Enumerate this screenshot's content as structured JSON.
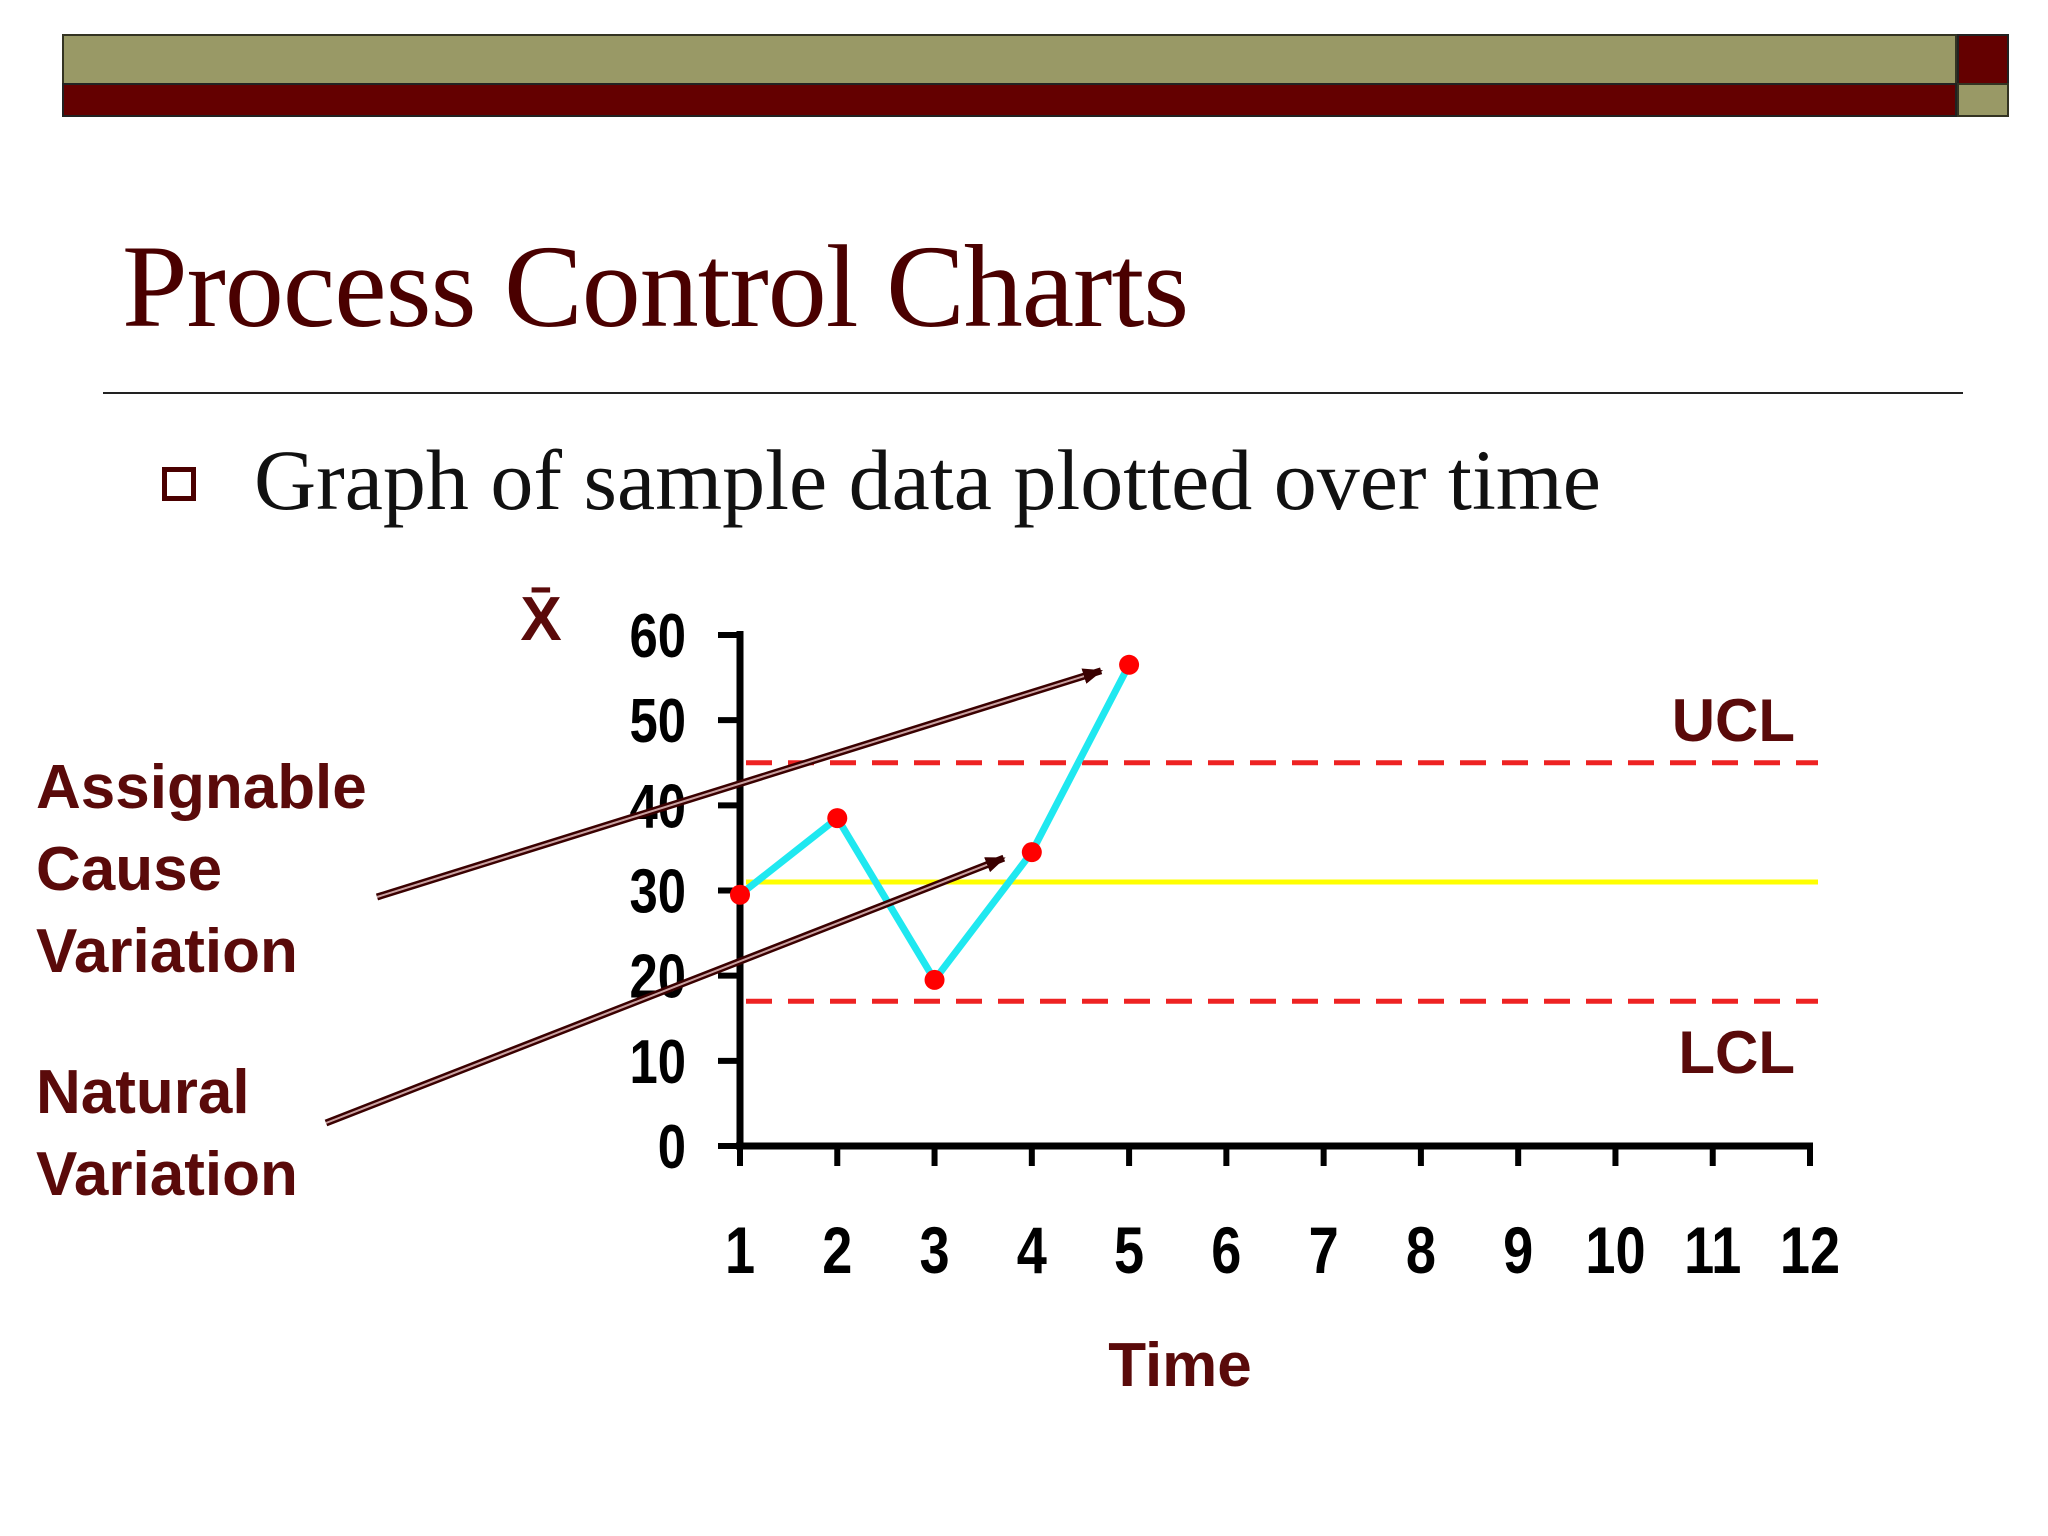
{
  "slide": {
    "title": "Process Control Charts",
    "bullet": "Graph of sample data plotted over time"
  },
  "colors": {
    "header_olive": "#999966",
    "header_maroon": "#640000",
    "title_text": "#4a0000",
    "label_text": "#5a0a0a",
    "axis": "#000000",
    "data_line": "#1fe8f0",
    "data_point": "#ff0000",
    "center_line": "#ffff00",
    "control_limit": "#ee2222"
  },
  "icons": {
    "bullet": "hollow-square-icon"
  },
  "chart_data": {
    "type": "line",
    "ylabel": "X̄",
    "xlabel": "Time",
    "x": [
      1,
      2,
      3,
      4,
      5,
      6,
      7,
      8,
      9,
      10,
      11,
      12
    ],
    "x_tick_labels": [
      "1",
      "2",
      "3",
      "4",
      "5",
      "6",
      "7",
      "8",
      "9",
      "10",
      "11",
      "12"
    ],
    "y_tick_labels": [
      "0",
      "10",
      "20",
      "30",
      "40",
      "50",
      "60"
    ],
    "ylim": [
      0,
      60
    ],
    "xlim": [
      1,
      12
    ],
    "grid": false,
    "series": [
      {
        "x": [
          1,
          2,
          3,
          4,
          5
        ],
        "values": [
          29.5,
          38.5,
          19.5,
          34.5,
          56.5
        ],
        "color": "#1fe8f0"
      }
    ],
    "reference_lines": [
      {
        "label": "UCL",
        "value": 45,
        "style": "dashed",
        "color": "#ee2222"
      },
      {
        "label": "",
        "value": 31,
        "style": "solid",
        "color": "#ffff00"
      },
      {
        "label": "LCL",
        "value": 17,
        "style": "dashed",
        "color": "#ee2222"
      }
    ],
    "annotations": [
      {
        "text_lines": [
          "Assignable",
          "Cause",
          "Variation"
        ],
        "points_to": {
          "x": 5,
          "y": 56.5
        }
      },
      {
        "text_lines": [
          "Natural",
          "Variation"
        ],
        "points_to": {
          "x": 4,
          "y": 34.5
        }
      }
    ]
  }
}
